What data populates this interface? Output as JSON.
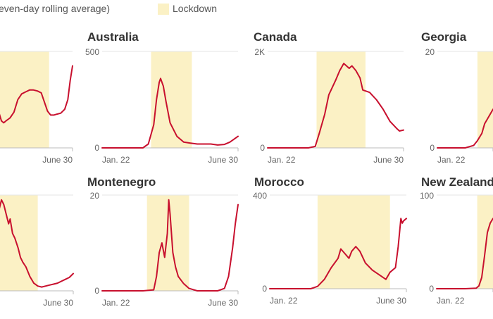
{
  "legend": {
    "series_label": "even-day rolling average)",
    "lockdown_label": "Lockdown"
  },
  "colors": {
    "line": "#c8102e",
    "lockdown": "#fbf1c5",
    "axis": "#bbbbbb",
    "title": "#333333",
    "tick": "#666666"
  },
  "chart_data": [
    {
      "type": "line",
      "title": "",
      "ylim": [
        0,
        100
      ],
      "y_tick_labels": [],
      "x_tick_labels": [
        "",
        "June 30"
      ],
      "lockdown": [
        0.0,
        0.7
      ],
      "x": [
        0.0,
        0.03,
        0.06,
        0.09,
        0.12,
        0.15,
        0.2,
        0.25,
        0.3,
        0.35,
        0.4,
        0.45,
        0.5,
        0.55,
        0.6,
        0.65,
        0.68,
        0.72,
        0.76,
        0.8,
        0.85,
        0.9,
        0.94,
        0.97,
        1.0
      ],
      "y": [
        48,
        44,
        36,
        28,
        26,
        28,
        31,
        37,
        50,
        56,
        58,
        60,
        60,
        59,
        57,
        45,
        38,
        34,
        34,
        35,
        36,
        40,
        50,
        70,
        85
      ]
    },
    {
      "type": "line",
      "title": "Australia",
      "ylim": [
        0,
        500
      ],
      "y_tick_labels": [
        "500",
        "0"
      ],
      "x_tick_labels": [
        "Jan. 22",
        "June 30"
      ],
      "lockdown": [
        0.36,
        0.66
      ],
      "x": [
        0.0,
        0.3,
        0.34,
        0.38,
        0.4,
        0.42,
        0.43,
        0.45,
        0.47,
        0.5,
        0.55,
        0.6,
        0.65,
        0.7,
        0.8,
        0.85,
        0.9,
        0.94,
        0.97,
        1.0
      ],
      "y": [
        0,
        0,
        20,
        120,
        250,
        340,
        360,
        320,
        240,
        130,
        60,
        30,
        25,
        20,
        20,
        15,
        18,
        30,
        45,
        60
      ]
    },
    {
      "type": "line",
      "title": "Canada",
      "ylim": [
        0,
        2000
      ],
      "y_tick_labels": [
        "2K",
        "0"
      ],
      "x_tick_labels": [
        "Jan. 22",
        "June 30"
      ],
      "lockdown": [
        0.36,
        0.72
      ],
      "x": [
        0.0,
        0.3,
        0.35,
        0.38,
        0.42,
        0.45,
        0.5,
        0.53,
        0.56,
        0.6,
        0.62,
        0.65,
        0.68,
        0.7,
        0.75,
        0.8,
        0.85,
        0.9,
        0.95,
        0.97,
        1.0
      ],
      "y": [
        0,
        0,
        30,
        300,
        700,
        1100,
        1400,
        1600,
        1750,
        1650,
        1700,
        1600,
        1450,
        1200,
        1150,
        1000,
        800,
        550,
        400,
        350,
        370
      ]
    },
    {
      "type": "line",
      "title": "Georgia",
      "ylim": [
        0,
        20
      ],
      "y_tick_labels": [
        "20",
        "0"
      ],
      "x_tick_labels": [
        "Jan. 22",
        ""
      ],
      "lockdown": [
        0.72,
        1.0
      ],
      "x": [
        0.0,
        0.5,
        0.65,
        0.72,
        0.8,
        0.85,
        0.9,
        0.95,
        1.0
      ],
      "y": [
        0,
        0,
        0.5,
        1.5,
        3,
        5,
        6,
        7,
        8
      ]
    },
    {
      "type": "line",
      "title": "",
      "ylim": [
        0,
        100
      ],
      "y_tick_labels": [],
      "x_tick_labels": [
        "",
        "June 30"
      ],
      "lockdown": [
        0.0,
        0.55
      ],
      "x": [
        0.0,
        0.03,
        0.06,
        0.09,
        0.12,
        0.15,
        0.18,
        0.2,
        0.23,
        0.26,
        0.3,
        0.33,
        0.36,
        0.4,
        0.45,
        0.5,
        0.55,
        0.6,
        0.65,
        0.7,
        0.75,
        0.8,
        0.85,
        0.9,
        0.95,
        1.0
      ],
      "y": [
        30,
        60,
        85,
        95,
        90,
        80,
        70,
        75,
        60,
        55,
        45,
        35,
        30,
        25,
        15,
        8,
        5,
        4,
        5,
        6,
        7,
        8,
        10,
        12,
        14,
        18
      ]
    },
    {
      "type": "line",
      "title": "Montenegro",
      "ylim": [
        0,
        20
      ],
      "y_tick_labels": [
        "20",
        "0"
      ],
      "x_tick_labels": [
        "Jan. 22",
        "June 30"
      ],
      "lockdown": [
        0.33,
        0.64
      ],
      "x": [
        0.0,
        0.3,
        0.38,
        0.4,
        0.42,
        0.44,
        0.46,
        0.48,
        0.49,
        0.5,
        0.52,
        0.54,
        0.56,
        0.6,
        0.64,
        0.7,
        0.85,
        0.9,
        0.93,
        0.96,
        0.98,
        1.0
      ],
      "y": [
        0,
        0,
        0.2,
        3,
        8,
        10,
        7,
        12,
        19,
        16,
        8,
        5,
        3,
        1.5,
        0.5,
        0,
        0,
        0.5,
        3,
        9,
        14,
        18
      ]
    },
    {
      "type": "line",
      "title": "Morocco",
      "ylim": [
        0,
        400
      ],
      "y_tick_labels": [
        "400",
        "0"
      ],
      "x_tick_labels": [
        "Jan. 22",
        "June 30"
      ],
      "lockdown": [
        0.35,
        0.88
      ],
      "x": [
        0.0,
        0.3,
        0.35,
        0.4,
        0.45,
        0.5,
        0.52,
        0.55,
        0.58,
        0.6,
        0.63,
        0.66,
        0.7,
        0.75,
        0.8,
        0.85,
        0.88,
        0.92,
        0.94,
        0.96,
        0.97,
        0.98,
        1.0
      ],
      "y": [
        0,
        0,
        10,
        40,
        90,
        130,
        170,
        150,
        130,
        160,
        180,
        160,
        110,
        80,
        60,
        40,
        70,
        90,
        180,
        300,
        280,
        290,
        300
      ]
    },
    {
      "type": "line",
      "title": "New Zealand",
      "ylim": [
        0,
        100
      ],
      "y_tick_labels": [
        "100",
        "0"
      ],
      "x_tick_labels": [
        "Jan. 22",
        ""
      ],
      "lockdown": [
        0.72,
        1.0
      ],
      "x": [
        0.0,
        0.5,
        0.7,
        0.75,
        0.8,
        0.85,
        0.9,
        0.95,
        1.0
      ],
      "y": [
        0,
        0,
        0.5,
        3,
        12,
        35,
        60,
        70,
        75
      ]
    }
  ]
}
